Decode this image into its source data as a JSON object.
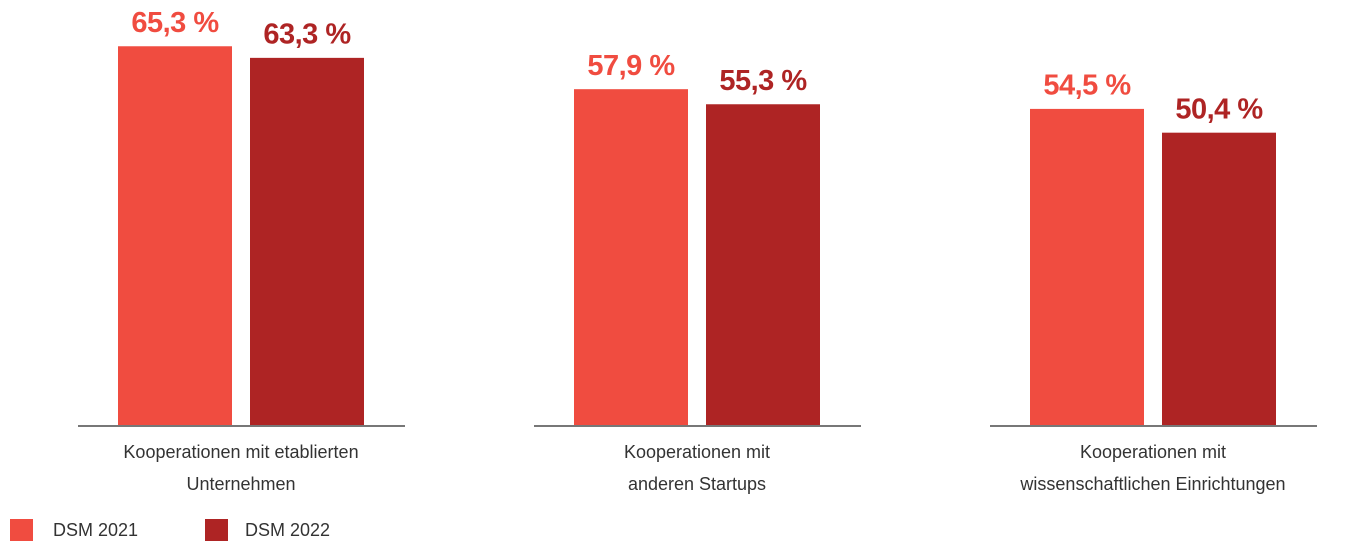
{
  "chart_data": {
    "type": "bar",
    "categories": [
      [
        "Kooperationen mit etablierten",
        "Unternehmen"
      ],
      [
        "Kooperationen mit",
        "anderen Startups"
      ],
      [
        "Kooperationen mit",
        "wissenschaftlichen Einrichtungen"
      ]
    ],
    "series": [
      {
        "name": "DSM 2021",
        "color": "#f04c40",
        "values": [
          65.3,
          57.9,
          54.5
        ],
        "value_labels": [
          "65,3 %",
          "57,9 %",
          "54,5 %"
        ]
      },
      {
        "name": "DSM 2022",
        "color": "#ae2424",
        "values": [
          63.3,
          55.3,
          50.4
        ],
        "value_labels": [
          "63,3 %",
          "55,3 %",
          "50,4 %"
        ]
      }
    ],
    "legend": "bottom-left"
  }
}
